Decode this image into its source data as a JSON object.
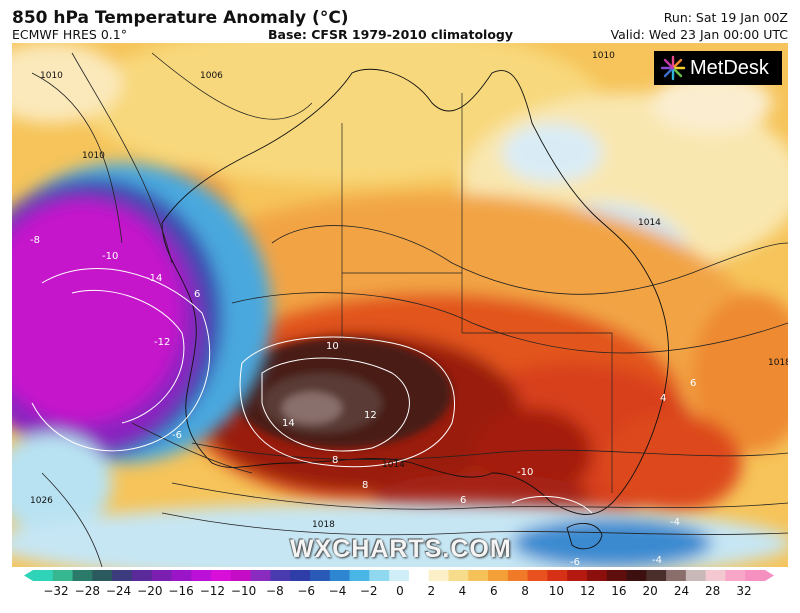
{
  "header": {
    "title": "850 hPa Temperature Anomaly (°C)",
    "subtitle": "ECMWF HRES 0.1°",
    "base": "Base: CFSR 1979-2010 climatology",
    "run": "Run: Sat 19 Jan 00Z",
    "valid": "Valid: Wed 23 Jan 00:00 UTC"
  },
  "logo": {
    "text": "MetDesk",
    "icon": "metdesk-starburst-icon"
  },
  "watermark": "WXCHARTS.COM",
  "map": {
    "isobar_labels": [
      "1010",
      "1006",
      "1010",
      "1010",
      "1014",
      "1014",
      "1018",
      "1026",
      "1018"
    ],
    "anomaly_labels": [
      "10",
      "12",
      "14",
      "-10",
      "-14",
      "-12",
      "-8",
      "6",
      "-6",
      "8",
      "8",
      "-10",
      "6",
      "4",
      "6",
      "-6",
      "-4",
      "-4"
    ]
  },
  "colorbar": {
    "ticks": [
      "−32",
      "−28",
      "−24",
      "−20",
      "−16",
      "−12",
      "−10",
      "−8",
      "−6",
      "−4",
      "−2",
      "0",
      "2",
      "4",
      "6",
      "8",
      "10",
      "12",
      "16",
      "20",
      "24",
      "28",
      "32"
    ],
    "colors": [
      "#2fd4b8",
      "#37b78f",
      "#2b7a6a",
      "#2a5a5e",
      "#3b3b7d",
      "#5a2a9a",
      "#7a1fb0",
      "#9a15c8",
      "#bb10d8",
      "#d80fd8",
      "#c40cc4",
      "#8a2bc0",
      "#4a3ab0",
      "#2f3da8",
      "#2a5ab8",
      "#2e86d0",
      "#49b6e6",
      "#8fd8f0",
      "#cfeef8",
      "#ffffff",
      "#fbf0c8",
      "#f7dc8c",
      "#f5c25a",
      "#f3a038",
      "#f07a28",
      "#e9511e",
      "#d63016",
      "#b41a10",
      "#8b0f0c",
      "#5e0e0c",
      "#3d1010",
      "#4a2e2c",
      "#8a6e6c",
      "#c8b8b8",
      "#f3c8d0",
      "#f7a6c8",
      "#f590c0"
    ]
  }
}
